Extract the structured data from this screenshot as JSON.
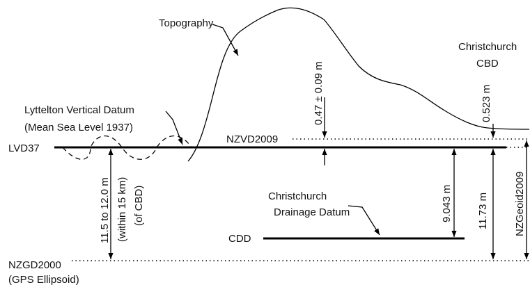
{
  "labels": {
    "topography": "Topography",
    "cbd_line1": "Christchurch",
    "cbd_line2": "CBD",
    "nzvd_offset": "0.47 ± 0.09 m",
    "cbd_offset": "0.523 m",
    "lvd_name1": "Lyttelton Vertical Datum",
    "lvd_name2": "(Mean Sea Level 1937)",
    "lvd37": "LVD37",
    "nzvd2009": "NZVD2009",
    "sep_line1": "11.5 to 12.0 m",
    "sep_line2": "(within 15 km)",
    "sep_line3": "(of CBD)",
    "cdd_offset": "9.043 m",
    "geoid_offset": "11.73 m",
    "nzgeoid2009": "NZGeoid2009",
    "cdd_name1": "Christchurch",
    "cdd_name2": "Drainage Datum",
    "cdd": "CDD",
    "nzgd2000": "NZGD2000",
    "nzgd_sub": "(GPS Ellipsoid)"
  }
}
